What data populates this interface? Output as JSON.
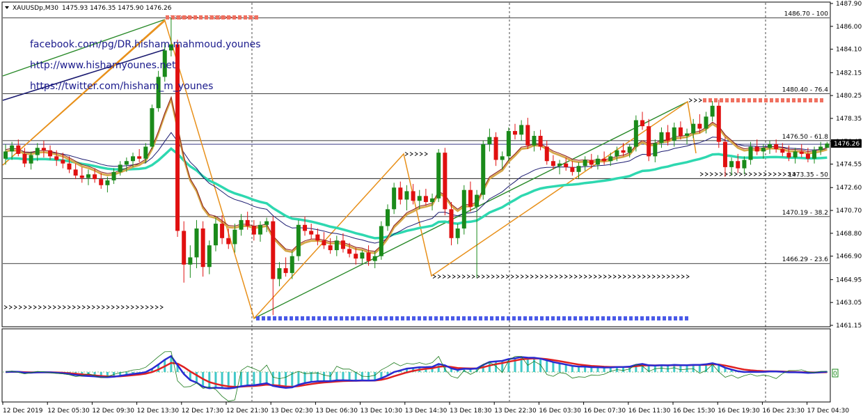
{
  "header": {
    "symbol": "XAUUSDp,M30",
    "quotes": "1475.93 1476.35 1475.90 1476.26"
  },
  "links": [
    "facebook.com/pg/DR.hisham.mahmoud.younes",
    "http://www.hishamyounes.net",
    "https://twitter.com/hisham_m_younes"
  ],
  "price_axis": {
    "ticks": [
      "1487.90",
      "1486.00",
      "1484.10",
      "1482.15",
      "1480.25",
      "1478.35",
      "1476.45",
      "1474.55",
      "1472.60",
      "1470.70",
      "1468.80",
      "1466.90",
      "1464.95",
      "1463.05",
      "1461.15"
    ],
    "current_price": "1476.26"
  },
  "time_axis": {
    "labels": [
      "12 Dec 2019",
      "12 Dec 05:30",
      "12 Dec 09:30",
      "12 Dec 13:30",
      "12 Dec 17:30",
      "12 Dec 21:30",
      "13 Dec 02:30",
      "13 Dec 06:30",
      "13 Dec 10:30",
      "13 Dec 14:30",
      "13 Dec 18:30",
      "13 Dec 22:30",
      "16 Dec 03:30",
      "16 Dec 07:30",
      "16 Dec 11:30",
      "16 Dec 15:30",
      "16 Dec 19:30",
      "16 Dec 23:30",
      "17 Dec 04:30"
    ]
  },
  "fib_levels": [
    {
      "label": "1486.70 - 100",
      "price": 1486.7
    },
    {
      "label": "1480.40 - 76.4",
      "price": 1480.4
    },
    {
      "label": "1476.50 - 61.8",
      "price": 1476.5
    },
    {
      "label": "1473.35 - 50",
      "price": 1473.35
    },
    {
      "label": "1470.19 - 38.2",
      "price": 1470.19
    },
    {
      "label": "1466.29 - 23.6",
      "price": 1466.29
    }
  ],
  "oscillator": {
    "zero_label": "0"
  },
  "colors": {
    "bull": "#1a8a1a",
    "bear": "#e01010",
    "fast_ma": "#2ed8b0",
    "slow_ma": "#8b1a1a",
    "signal_ma": "#d6a84a",
    "zigzag": "#e8901a",
    "trend_green": "#2a8a2a",
    "trend_navy": "#1a1a70",
    "blue_dash": "#4a5ae8",
    "red_dash": "#f07060",
    "macd_main": "#2a2ad0",
    "macd_signal": "#e02020",
    "histogram": "#40c8c8"
  },
  "chart_data": {
    "type": "candlestick",
    "title": "XAUUSDp,M30",
    "ylim": [
      1460.7,
      1488.2
    ],
    "candles": [
      [
        1475.0,
        1476.2,
        1474.5,
        1475.6
      ],
      [
        1475.6,
        1476.4,
        1474.9,
        1476.1
      ],
      [
        1476.1,
        1476.6,
        1475.2,
        1475.4
      ],
      [
        1475.4,
        1475.9,
        1474.3,
        1474.6
      ],
      [
        1474.6,
        1475.6,
        1474.1,
        1475.3
      ],
      [
        1475.3,
        1476.3,
        1474.8,
        1475.9
      ],
      [
        1475.9,
        1476.5,
        1475.1,
        1475.7
      ],
      [
        1475.7,
        1476.1,
        1474.9,
        1475.2
      ],
      [
        1475.2,
        1475.7,
        1474.4,
        1474.9
      ],
      [
        1474.9,
        1475.5,
        1474.2,
        1474.6
      ],
      [
        1474.6,
        1475.2,
        1473.8,
        1474.1
      ],
      [
        1474.1,
        1474.6,
        1473.3,
        1473.6
      ],
      [
        1473.6,
        1474.3,
        1473.0,
        1473.4
      ],
      [
        1473.4,
        1474.1,
        1472.8,
        1473.7
      ],
      [
        1473.7,
        1474.2,
        1473.0,
        1473.3
      ],
      [
        1473.3,
        1473.8,
        1472.5,
        1472.8
      ],
      [
        1472.8,
        1473.5,
        1472.2,
        1473.2
      ],
      [
        1473.2,
        1474.2,
        1472.9,
        1473.9
      ],
      [
        1473.9,
        1474.8,
        1473.6,
        1474.5
      ],
      [
        1474.5,
        1475.1,
        1473.9,
        1474.8
      ],
      [
        1474.8,
        1475.5,
        1474.3,
        1475.2
      ],
      [
        1475.2,
        1475.8,
        1474.7,
        1475.0
      ],
      [
        1475.0,
        1476.3,
        1474.6,
        1476.0
      ],
      [
        1476.0,
        1479.5,
        1475.8,
        1479.2
      ],
      [
        1479.2,
        1482.3,
        1478.9,
        1481.8
      ],
      [
        1481.8,
        1484.6,
        1481.4,
        1484.0
      ],
      [
        1484.0,
        1486.7,
        1483.5,
        1484.5
      ],
      [
        1484.5,
        1484.9,
        1468.5,
        1469.0
      ],
      [
        1469.0,
        1469.8,
        1464.7,
        1466.2
      ],
      [
        1466.2,
        1467.8,
        1465.1,
        1466.8
      ],
      [
        1466.8,
        1469.9,
        1465.9,
        1469.2
      ],
      [
        1469.2,
        1469.8,
        1465.2,
        1466.0
      ],
      [
        1466.0,
        1468.2,
        1465.4,
        1467.8
      ],
      [
        1467.8,
        1470.1,
        1467.3,
        1469.6
      ],
      [
        1469.6,
        1470.3,
        1467.9,
        1468.4
      ],
      [
        1468.4,
        1469.2,
        1467.5,
        1467.9
      ],
      [
        1467.9,
        1469.6,
        1467.2,
        1469.1
      ],
      [
        1469.1,
        1470.4,
        1468.6,
        1469.9
      ],
      [
        1469.9,
        1470.6,
        1469.1,
        1469.4
      ],
      [
        1469.4,
        1469.9,
        1468.2,
        1468.7
      ],
      [
        1468.7,
        1469.8,
        1468.1,
        1469.5
      ],
      [
        1469.5,
        1470.1,
        1468.9,
        1469.8
      ],
      [
        1469.8,
        1470.2,
        1462.0,
        1465.0
      ],
      [
        1465.0,
        1466.4,
        1464.4,
        1465.9
      ],
      [
        1465.9,
        1466.8,
        1465.2,
        1465.5
      ],
      [
        1465.5,
        1467.3,
        1465.0,
        1466.9
      ],
      [
        1466.9,
        1469.9,
        1466.5,
        1469.5
      ],
      [
        1469.5,
        1470.2,
        1468.6,
        1469.0
      ],
      [
        1469.0,
        1469.6,
        1468.3,
        1468.7
      ],
      [
        1468.7,
        1469.2,
        1467.8,
        1468.2
      ],
      [
        1468.2,
        1468.9,
        1467.5,
        1467.8
      ],
      [
        1467.8,
        1468.4,
        1467.1,
        1467.4
      ],
      [
        1467.4,
        1468.6,
        1466.9,
        1468.2
      ],
      [
        1468.2,
        1468.8,
        1467.2,
        1467.5
      ],
      [
        1467.5,
        1468.0,
        1466.8,
        1467.1
      ],
      [
        1467.1,
        1467.6,
        1466.2,
        1466.7
      ],
      [
        1466.7,
        1467.4,
        1466.3,
        1467.2
      ],
      [
        1467.2,
        1467.8,
        1466.1,
        1466.5
      ],
      [
        1466.5,
        1467.3,
        1465.9,
        1466.9
      ],
      [
        1466.9,
        1469.8,
        1466.6,
        1469.4
      ],
      [
        1469.4,
        1471.2,
        1469.0,
        1470.8
      ],
      [
        1470.8,
        1473.0,
        1470.4,
        1472.6
      ],
      [
        1472.6,
        1473.1,
        1471.2,
        1471.6
      ],
      [
        1471.6,
        1472.8,
        1470.7,
        1472.3
      ],
      [
        1472.3,
        1472.9,
        1471.2,
        1471.5
      ],
      [
        1471.5,
        1472.4,
        1470.8,
        1471.9
      ],
      [
        1471.9,
        1472.5,
        1471.1,
        1471.4
      ],
      [
        1471.4,
        1472.1,
        1470.7,
        1471.7
      ],
      [
        1471.7,
        1475.8,
        1471.4,
        1475.5
      ],
      [
        1475.5,
        1475.9,
        1470.3,
        1470.8
      ],
      [
        1470.8,
        1471.4,
        1467.8,
        1468.4
      ],
      [
        1468.4,
        1469.6,
        1467.9,
        1469.2
      ],
      [
        1469.2,
        1472.8,
        1468.7,
        1472.4
      ],
      [
        1472.4,
        1473.1,
        1470.6,
        1471.0
      ],
      [
        1471.0,
        1472.4,
        1465.1,
        1472.0
      ],
      [
        1472.0,
        1476.5,
        1471.6,
        1476.2
      ],
      [
        1476.2,
        1477.5,
        1475.6,
        1476.8
      ],
      [
        1476.8,
        1477.2,
        1474.4,
        1474.9
      ],
      [
        1474.9,
        1475.6,
        1474.1,
        1475.2
      ],
      [
        1475.2,
        1477.6,
        1474.8,
        1477.3
      ],
      [
        1477.3,
        1477.9,
        1476.6,
        1477.0
      ],
      [
        1477.0,
        1478.2,
        1476.5,
        1477.8
      ],
      [
        1477.8,
        1478.4,
        1475.8,
        1476.1
      ],
      [
        1476.1,
        1477.3,
        1475.6,
        1476.9
      ],
      [
        1476.9,
        1477.4,
        1475.7,
        1476.0
      ],
      [
        1476.0,
        1476.5,
        1474.5,
        1474.8
      ],
      [
        1474.8,
        1475.3,
        1474.1,
        1474.4
      ],
      [
        1474.4,
        1474.9,
        1473.7,
        1474.6
      ],
      [
        1474.6,
        1475.1,
        1474.0,
        1474.3
      ],
      [
        1474.3,
        1474.8,
        1473.6,
        1473.9
      ],
      [
        1473.9,
        1474.7,
        1473.3,
        1474.4
      ],
      [
        1474.4,
        1475.2,
        1474.0,
        1474.9
      ],
      [
        1474.9,
        1475.4,
        1474.2,
        1474.5
      ],
      [
        1474.5,
        1475.3,
        1474.1,
        1475.0
      ],
      [
        1475.0,
        1475.6,
        1474.5,
        1474.8
      ],
      [
        1474.8,
        1475.5,
        1474.4,
        1475.2
      ],
      [
        1475.2,
        1476.0,
        1474.8,
        1475.7
      ],
      [
        1475.7,
        1476.3,
        1475.2,
        1475.5
      ],
      [
        1475.5,
        1476.2,
        1475.1,
        1476.0
      ],
      [
        1476.0,
        1478.6,
        1475.6,
        1478.2
      ],
      [
        1478.2,
        1478.9,
        1477.4,
        1477.7
      ],
      [
        1477.7,
        1478.3,
        1474.8,
        1475.2
      ],
      [
        1475.2,
        1476.6,
        1474.7,
        1476.3
      ],
      [
        1476.3,
        1477.6,
        1475.9,
        1477.2
      ],
      [
        1477.2,
        1477.8,
        1476.1,
        1476.5
      ],
      [
        1476.5,
        1478.0,
        1476.0,
        1477.6
      ],
      [
        1477.6,
        1478.1,
        1476.6,
        1476.9
      ],
      [
        1476.9,
        1477.5,
        1476.2,
        1477.1
      ],
      [
        1477.1,
        1478.3,
        1476.7,
        1477.9
      ],
      [
        1477.9,
        1478.7,
        1477.1,
        1477.5
      ],
      [
        1477.5,
        1478.9,
        1477.1,
        1478.5
      ],
      [
        1478.5,
        1479.8,
        1478.1,
        1479.4
      ],
      [
        1479.4,
        1479.9,
        1475.9,
        1476.4
      ],
      [
        1476.4,
        1476.8,
        1473.5,
        1474.3
      ],
      [
        1474.3,
        1475.1,
        1473.6,
        1474.8
      ],
      [
        1474.8,
        1475.4,
        1473.8,
        1474.2
      ],
      [
        1474.2,
        1475.2,
        1473.7,
        1474.9
      ],
      [
        1474.9,
        1476.4,
        1474.5,
        1476.0
      ],
      [
        1476.0,
        1476.6,
        1475.3,
        1475.6
      ],
      [
        1475.6,
        1476.2,
        1475.0,
        1475.9
      ],
      [
        1475.9,
        1476.5,
        1475.4,
        1476.2
      ],
      [
        1476.2,
        1476.6,
        1475.5,
        1475.8
      ],
      [
        1475.8,
        1476.3,
        1475.2,
        1475.5
      ],
      [
        1475.5,
        1476.1,
        1474.8,
        1475.1
      ],
      [
        1475.1,
        1475.9,
        1474.6,
        1475.6
      ],
      [
        1475.6,
        1476.2,
        1475.1,
        1475.4
      ],
      [
        1475.4,
        1475.9,
        1474.7,
        1475.0
      ],
      [
        1475.0,
        1476.0,
        1474.6,
        1475.7
      ],
      [
        1475.7,
        1476.4,
        1475.3,
        1476.0
      ],
      [
        1475.9,
        1476.4,
        1475.9,
        1476.26
      ]
    ],
    "fib_levels": [
      1486.7,
      1480.4,
      1476.5,
      1473.35,
      1470.19,
      1466.29
    ]
  }
}
